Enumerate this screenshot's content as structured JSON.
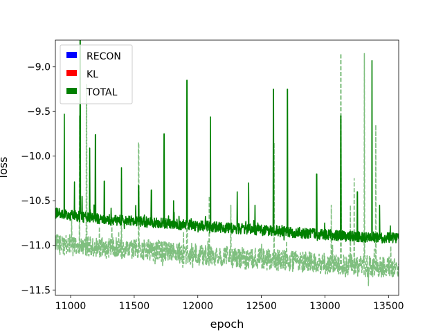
{
  "chart_data": {
    "type": "line",
    "title": "",
    "xlabel": "epoch",
    "ylabel": "loss",
    "xlim": [
      10880,
      13580
    ],
    "ylim": [
      -11.56,
      -8.7
    ],
    "xticks": [
      11000,
      11500,
      12000,
      12500,
      13000,
      13500
    ],
    "xtick_labels": [
      "11000",
      "11500",
      "12000",
      "12500",
      "13000",
      "13500"
    ],
    "yticks": [
      -11.5,
      -11.0,
      -10.5,
      -10.0,
      -9.5,
      -9.0
    ],
    "ytick_labels": [
      "−11.5",
      "−11.0",
      "−10.5",
      "−10.0",
      "−9.5",
      "−9.0"
    ],
    "grid": false,
    "legend_position": "upper-left",
    "series": [
      {
        "name": "RECON",
        "color": "#0000ff",
        "values": []
      },
      {
        "name": "KL",
        "color": "#ff0000",
        "values": []
      },
      {
        "name": "TOTAL",
        "color": "#008000",
        "style": "solid",
        "trend": [
          [
            10880,
            -10.64
          ],
          [
            11200,
            -10.7
          ],
          [
            11600,
            -10.74
          ],
          [
            12000,
            -10.78
          ],
          [
            12400,
            -10.82
          ],
          [
            12800,
            -10.86
          ],
          [
            13200,
            -10.9
          ],
          [
            13580,
            -10.92
          ]
        ],
        "noise": 0.06,
        "spikes": [
          [
            10950,
            -9.53
          ],
          [
            11030,
            -10.29
          ],
          [
            11075,
            -8.7
          ],
          [
            11090,
            -10.45
          ],
          [
            11150,
            -9.91
          ],
          [
            11195,
            -9.76
          ],
          [
            11265,
            -10.28
          ],
          [
            11400,
            -10.13
          ],
          [
            11535,
            -10.33
          ],
          [
            11635,
            -10.38
          ],
          [
            11735,
            -9.75
          ],
          [
            11810,
            -10.5
          ],
          [
            11915,
            -9.15
          ],
          [
            12100,
            -9.56
          ],
          [
            12310,
            -10.4
          ],
          [
            12400,
            -10.3
          ],
          [
            12450,
            -10.55
          ],
          [
            12595,
            -9.25
          ],
          [
            12705,
            -9.25
          ],
          [
            12935,
            -10.2
          ],
          [
            13125,
            -9.55
          ],
          [
            13255,
            -10.4
          ],
          [
            13370,
            -8.93
          ],
          [
            13430,
            -10.55
          ]
        ]
      },
      {
        "name": "",
        "color": "#008000",
        "opacity": 0.5,
        "style": "dashed",
        "trend": [
          [
            10880,
            -10.98
          ],
          [
            11200,
            -11.02
          ],
          [
            11600,
            -11.05
          ],
          [
            12000,
            -11.1
          ],
          [
            12400,
            -11.15
          ],
          [
            12800,
            -11.18
          ],
          [
            13200,
            -11.22
          ],
          [
            13580,
            -11.25
          ]
        ],
        "noise": 0.12,
        "spikes": [
          [
            11070,
            -9.55
          ],
          [
            11125,
            -9.2
          ],
          [
            11400,
            -10.25
          ],
          [
            11535,
            -9.85
          ],
          [
            11915,
            -10.3
          ],
          [
            12090,
            -10.45
          ],
          [
            12260,
            -10.55
          ],
          [
            12600,
            -9.85
          ],
          [
            13050,
            -10.55
          ],
          [
            13125,
            -8.85
          ],
          [
            13200,
            -10.55
          ],
          [
            13310,
            -8.85
          ],
          [
            13400,
            -9.65
          ],
          [
            13230,
            -10.25
          ]
        ]
      }
    ]
  }
}
